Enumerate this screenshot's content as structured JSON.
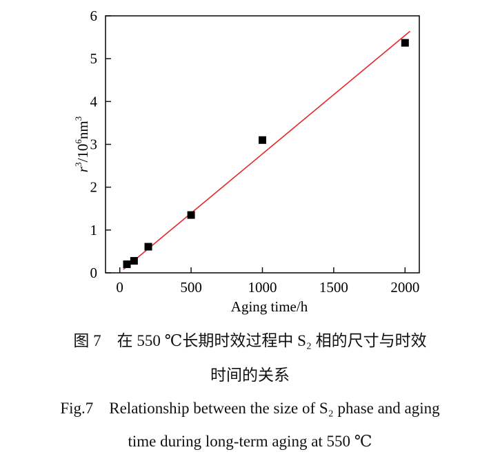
{
  "chart_data": {
    "type": "scatter",
    "title": "",
    "xlabel": "Aging time/h",
    "ylabel_parts": {
      "base": "r",
      "sup1": "3",
      "mid": "/10",
      "sup2": "6",
      "unit": "nm",
      "sup3": "3"
    },
    "xlim": [
      -100,
      2100
    ],
    "ylim": [
      0,
      6
    ],
    "xticks": [
      0,
      500,
      1000,
      1500,
      2000
    ],
    "yticks": [
      0,
      1,
      2,
      3,
      4,
      5,
      6
    ],
    "grid": false,
    "series": [
      {
        "kind": "points",
        "marker": "square",
        "color": "#000000",
        "x": [
          50,
          100,
          200,
          500,
          1000,
          2000
        ],
        "y": [
          0.2,
          0.28,
          0.61,
          1.35,
          3.1,
          5.37
        ]
      },
      {
        "kind": "fit-line",
        "color": "#e8262a",
        "x": [
          25,
          2035
        ],
        "y": [
          0.08,
          5.64
        ]
      }
    ]
  },
  "caption": {
    "cn_line1": "图 7　在 550 ℃长期时效过程中 S₂ 相的尺寸与时效",
    "cn_line2": "时间的关系",
    "en_line1": "Fig.7　Relationship between the size of S₂ phase and aging",
    "en_line2": "time during long-term aging at 550 ℃"
  }
}
